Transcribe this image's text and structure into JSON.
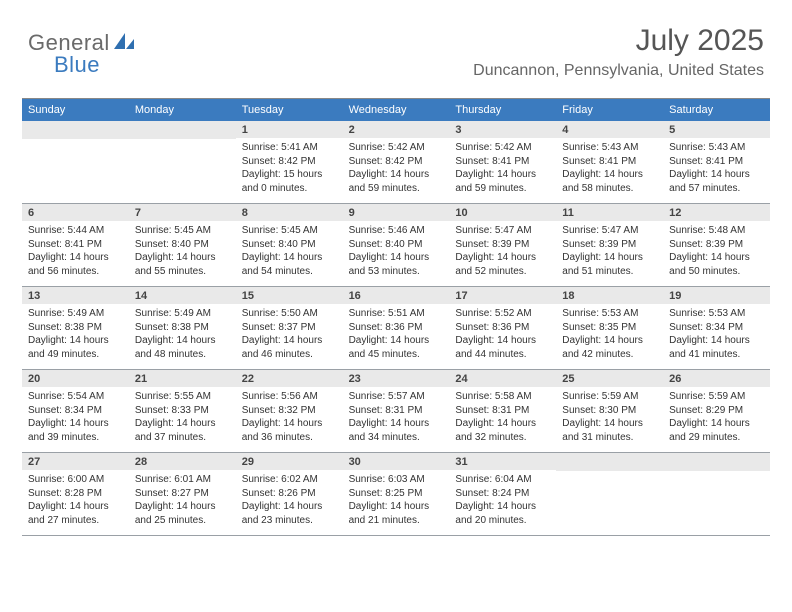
{
  "brand": {
    "part1": "General",
    "part2": "Blue"
  },
  "title": "July 2025",
  "location": "Duncannon, Pennsylvania, United States",
  "colors": {
    "header_bar": "#3b7bbf",
    "daynum_bg": "#e9e9e9",
    "border": "#9aa0a6",
    "text": "#333333",
    "brand_gray": "#6a6a6a",
    "brand_blue": "#3b7bbf"
  },
  "days_of_week": [
    "Sunday",
    "Monday",
    "Tuesday",
    "Wednesday",
    "Thursday",
    "Friday",
    "Saturday"
  ],
  "weeks": [
    [
      null,
      null,
      {
        "n": "1",
        "sr": "Sunrise: 5:41 AM",
        "ss": "Sunset: 8:42 PM",
        "d1": "Daylight: 15 hours",
        "d2": "and 0 minutes."
      },
      {
        "n": "2",
        "sr": "Sunrise: 5:42 AM",
        "ss": "Sunset: 8:42 PM",
        "d1": "Daylight: 14 hours",
        "d2": "and 59 minutes."
      },
      {
        "n": "3",
        "sr": "Sunrise: 5:42 AM",
        "ss": "Sunset: 8:41 PM",
        "d1": "Daylight: 14 hours",
        "d2": "and 59 minutes."
      },
      {
        "n": "4",
        "sr": "Sunrise: 5:43 AM",
        "ss": "Sunset: 8:41 PM",
        "d1": "Daylight: 14 hours",
        "d2": "and 58 minutes."
      },
      {
        "n": "5",
        "sr": "Sunrise: 5:43 AM",
        "ss": "Sunset: 8:41 PM",
        "d1": "Daylight: 14 hours",
        "d2": "and 57 minutes."
      }
    ],
    [
      {
        "n": "6",
        "sr": "Sunrise: 5:44 AM",
        "ss": "Sunset: 8:41 PM",
        "d1": "Daylight: 14 hours",
        "d2": "and 56 minutes."
      },
      {
        "n": "7",
        "sr": "Sunrise: 5:45 AM",
        "ss": "Sunset: 8:40 PM",
        "d1": "Daylight: 14 hours",
        "d2": "and 55 minutes."
      },
      {
        "n": "8",
        "sr": "Sunrise: 5:45 AM",
        "ss": "Sunset: 8:40 PM",
        "d1": "Daylight: 14 hours",
        "d2": "and 54 minutes."
      },
      {
        "n": "9",
        "sr": "Sunrise: 5:46 AM",
        "ss": "Sunset: 8:40 PM",
        "d1": "Daylight: 14 hours",
        "d2": "and 53 minutes."
      },
      {
        "n": "10",
        "sr": "Sunrise: 5:47 AM",
        "ss": "Sunset: 8:39 PM",
        "d1": "Daylight: 14 hours",
        "d2": "and 52 minutes."
      },
      {
        "n": "11",
        "sr": "Sunrise: 5:47 AM",
        "ss": "Sunset: 8:39 PM",
        "d1": "Daylight: 14 hours",
        "d2": "and 51 minutes."
      },
      {
        "n": "12",
        "sr": "Sunrise: 5:48 AM",
        "ss": "Sunset: 8:39 PM",
        "d1": "Daylight: 14 hours",
        "d2": "and 50 minutes."
      }
    ],
    [
      {
        "n": "13",
        "sr": "Sunrise: 5:49 AM",
        "ss": "Sunset: 8:38 PM",
        "d1": "Daylight: 14 hours",
        "d2": "and 49 minutes."
      },
      {
        "n": "14",
        "sr": "Sunrise: 5:49 AM",
        "ss": "Sunset: 8:38 PM",
        "d1": "Daylight: 14 hours",
        "d2": "and 48 minutes."
      },
      {
        "n": "15",
        "sr": "Sunrise: 5:50 AM",
        "ss": "Sunset: 8:37 PM",
        "d1": "Daylight: 14 hours",
        "d2": "and 46 minutes."
      },
      {
        "n": "16",
        "sr": "Sunrise: 5:51 AM",
        "ss": "Sunset: 8:36 PM",
        "d1": "Daylight: 14 hours",
        "d2": "and 45 minutes."
      },
      {
        "n": "17",
        "sr": "Sunrise: 5:52 AM",
        "ss": "Sunset: 8:36 PM",
        "d1": "Daylight: 14 hours",
        "d2": "and 44 minutes."
      },
      {
        "n": "18",
        "sr": "Sunrise: 5:53 AM",
        "ss": "Sunset: 8:35 PM",
        "d1": "Daylight: 14 hours",
        "d2": "and 42 minutes."
      },
      {
        "n": "19",
        "sr": "Sunrise: 5:53 AM",
        "ss": "Sunset: 8:34 PM",
        "d1": "Daylight: 14 hours",
        "d2": "and 41 minutes."
      }
    ],
    [
      {
        "n": "20",
        "sr": "Sunrise: 5:54 AM",
        "ss": "Sunset: 8:34 PM",
        "d1": "Daylight: 14 hours",
        "d2": "and 39 minutes."
      },
      {
        "n": "21",
        "sr": "Sunrise: 5:55 AM",
        "ss": "Sunset: 8:33 PM",
        "d1": "Daylight: 14 hours",
        "d2": "and 37 minutes."
      },
      {
        "n": "22",
        "sr": "Sunrise: 5:56 AM",
        "ss": "Sunset: 8:32 PM",
        "d1": "Daylight: 14 hours",
        "d2": "and 36 minutes."
      },
      {
        "n": "23",
        "sr": "Sunrise: 5:57 AM",
        "ss": "Sunset: 8:31 PM",
        "d1": "Daylight: 14 hours",
        "d2": "and 34 minutes."
      },
      {
        "n": "24",
        "sr": "Sunrise: 5:58 AM",
        "ss": "Sunset: 8:31 PM",
        "d1": "Daylight: 14 hours",
        "d2": "and 32 minutes."
      },
      {
        "n": "25",
        "sr": "Sunrise: 5:59 AM",
        "ss": "Sunset: 8:30 PM",
        "d1": "Daylight: 14 hours",
        "d2": "and 31 minutes."
      },
      {
        "n": "26",
        "sr": "Sunrise: 5:59 AM",
        "ss": "Sunset: 8:29 PM",
        "d1": "Daylight: 14 hours",
        "d2": "and 29 minutes."
      }
    ],
    [
      {
        "n": "27",
        "sr": "Sunrise: 6:00 AM",
        "ss": "Sunset: 8:28 PM",
        "d1": "Daylight: 14 hours",
        "d2": "and 27 minutes."
      },
      {
        "n": "28",
        "sr": "Sunrise: 6:01 AM",
        "ss": "Sunset: 8:27 PM",
        "d1": "Daylight: 14 hours",
        "d2": "and 25 minutes."
      },
      {
        "n": "29",
        "sr": "Sunrise: 6:02 AM",
        "ss": "Sunset: 8:26 PM",
        "d1": "Daylight: 14 hours",
        "d2": "and 23 minutes."
      },
      {
        "n": "30",
        "sr": "Sunrise: 6:03 AM",
        "ss": "Sunset: 8:25 PM",
        "d1": "Daylight: 14 hours",
        "d2": "and 21 minutes."
      },
      {
        "n": "31",
        "sr": "Sunrise: 6:04 AM",
        "ss": "Sunset: 8:24 PM",
        "d1": "Daylight: 14 hours",
        "d2": "and 20 minutes."
      },
      null,
      null
    ]
  ]
}
